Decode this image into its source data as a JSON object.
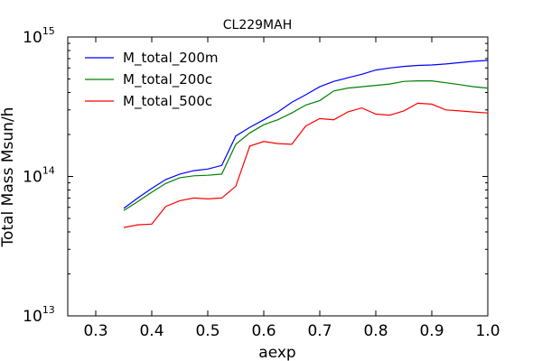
{
  "chart_data": {
    "type": "line",
    "title": "CL229MAH",
    "xlabel": "aexp",
    "ylabel": "Total Mass Msun/h",
    "xlim": [
      0.25,
      1.0
    ],
    "ylim": [
      10000000000000.0,
      1000000000000000.0
    ],
    "yscale": "log",
    "grid": false,
    "legend_position": "top-left",
    "x_ticks": [
      "0.3",
      "0.4",
      "0.5",
      "0.6",
      "0.7",
      "0.8",
      "0.9",
      "1.0"
    ],
    "y_ticks": [
      {
        "base": "10",
        "exp": "13",
        "value": 10000000000000.0
      },
      {
        "base": "10",
        "exp": "14",
        "value": 100000000000000.0
      },
      {
        "base": "10",
        "exp": "15",
        "value": 1000000000000000.0
      }
    ],
    "x": [
      0.35,
      0.375,
      0.4,
      0.425,
      0.45,
      0.475,
      0.5,
      0.525,
      0.55,
      0.575,
      0.6,
      0.625,
      0.65,
      0.675,
      0.7,
      0.725,
      0.75,
      0.775,
      0.8,
      0.825,
      0.85,
      0.875,
      0.9,
      0.925,
      0.95,
      0.975,
      1.0
    ],
    "series": [
      {
        "name": "M_total_200m",
        "color": "#0000ff",
        "values": [
          59000000000000.0,
          70000000000000.0,
          82000000000000.0,
          95000000000000.0,
          104000000000000.0,
          110000000000000.0,
          113000000000000.0,
          120000000000000.0,
          195000000000000.0,
          225000000000000.0,
          255000000000000.0,
          290000000000000.0,
          340000000000000.0,
          385000000000000.0,
          440000000000000.0,
          480000000000000.0,
          510000000000000.0,
          540000000000000.0,
          580000000000000.0,
          600000000000000.0,
          615000000000000.0,
          625000000000000.0,
          630000000000000.0,
          640000000000000.0,
          655000000000000.0,
          670000000000000.0,
          680000000000000.0
        ]
      },
      {
        "name": "M_total_200c",
        "color": "#008000",
        "values": [
          57000000000000.0,
          66000000000000.0,
          77000000000000.0,
          89000000000000.0,
          98000000000000.0,
          101000000000000.0,
          102000000000000.0,
          104000000000000.0,
          170000000000000.0,
          205000000000000.0,
          235000000000000.0,
          255000000000000.0,
          285000000000000.0,
          325000000000000.0,
          350000000000000.0,
          410000000000000.0,
          430000000000000.0,
          440000000000000.0,
          450000000000000.0,
          460000000000000.0,
          480000000000000.0,
          485000000000000.0,
          485000000000000.0,
          470000000000000.0,
          455000000000000.0,
          440000000000000.0,
          430000000000000.0
        ]
      },
      {
        "name": "M_total_500c",
        "color": "#ff0000",
        "values": [
          43000000000000.0,
          45000000000000.0,
          45500000000000.0,
          61000000000000.0,
          67000000000000.0,
          70000000000000.0,
          69000000000000.0,
          70000000000000.0,
          85000000000000.0,
          165000000000000.0,
          178000000000000.0,
          172000000000000.0,
          170000000000000.0,
          230000000000000.0,
          260000000000000.0,
          255000000000000.0,
          290000000000000.0,
          310000000000000.0,
          280000000000000.0,
          275000000000000.0,
          295000000000000.0,
          335000000000000.0,
          330000000000000.0,
          300000000000000.0,
          295000000000000.0,
          290000000000000.0,
          285000000000000.0
        ]
      }
    ]
  }
}
